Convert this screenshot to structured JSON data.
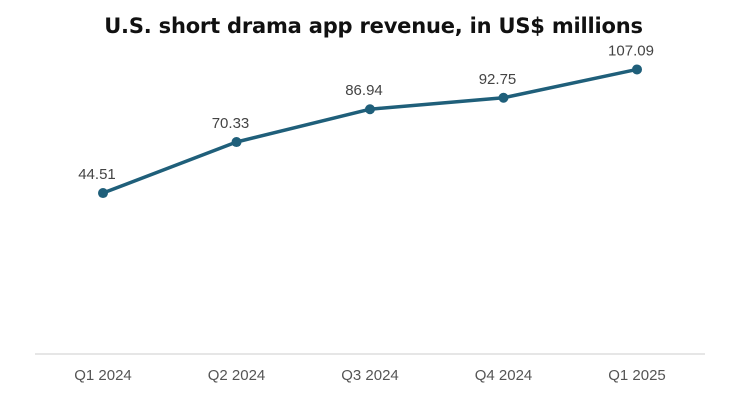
{
  "chart_data": {
    "type": "line",
    "title": "U.S. short drama app revenue, in US$ millions",
    "xlabel": "",
    "ylabel": "",
    "categories": [
      "Q1 2024",
      "Q2 2024",
      "Q3 2024",
      "Q4 2024",
      "Q1 2025"
    ],
    "series": [
      {
        "name": "Revenue",
        "values": [
          44.51,
          70.33,
          86.94,
          92.75,
          107.09
        ],
        "labels": [
          "44.51",
          "70.33",
          "86.94",
          "92.75",
          "107.09"
        ],
        "color": "#1f5f7a"
      }
    ],
    "ylim": [
      -37,
      122
    ],
    "grid": false,
    "axis_color": "#cccccc"
  }
}
